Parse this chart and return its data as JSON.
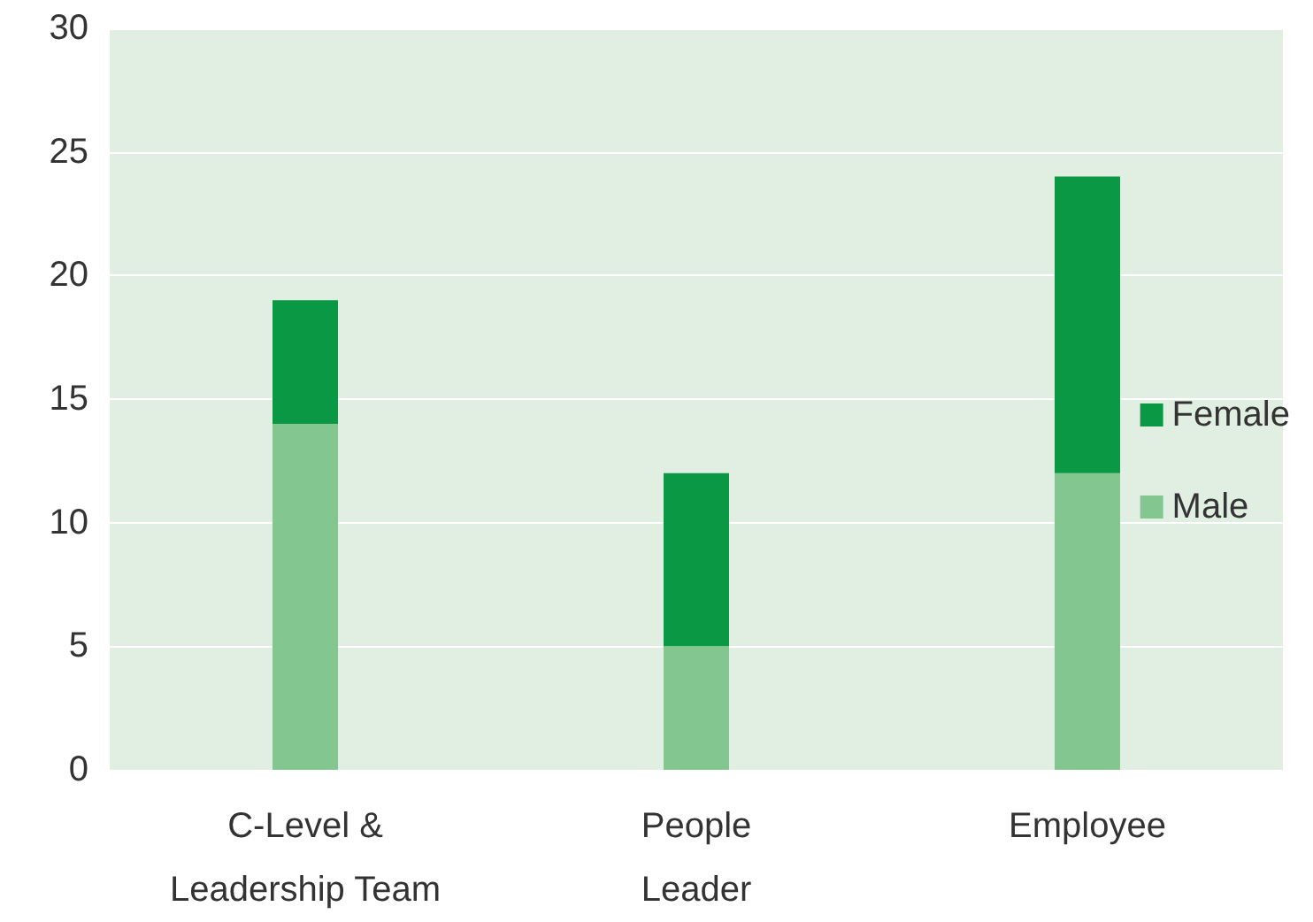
{
  "chart_data": {
    "type": "bar",
    "categories": [
      "C-Level &\nLeadership Team",
      "People\nLeader",
      "Employee"
    ],
    "series": [
      {
        "name": "Male",
        "color": "#83c68f",
        "values": [
          14,
          5,
          12
        ]
      },
      {
        "name": "Female",
        "color": "#0a9845",
        "values": [
          5,
          7,
          12
        ]
      }
    ],
    "stacked": true,
    "ylim": [
      0,
      30
    ],
    "yticks": [
      0,
      5,
      10,
      15,
      20,
      25,
      30
    ],
    "grid": "y",
    "legend": "right"
  }
}
